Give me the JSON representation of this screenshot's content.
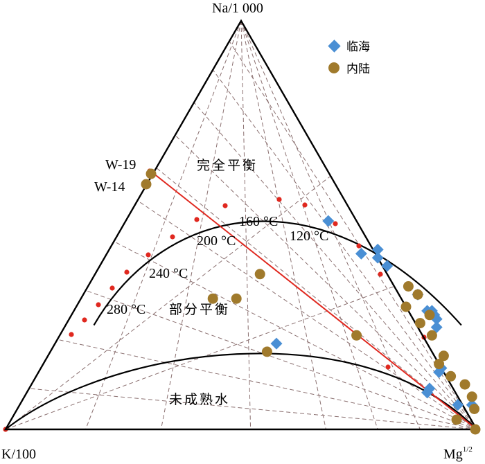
{
  "chart_data": {
    "type": "scatter",
    "subtype": "ternary",
    "title": "",
    "vertices": {
      "top": "Na/1 000",
      "left": "K/100",
      "right_base": "Mg",
      "right_sup": "1/2"
    },
    "legend": {
      "placement": "top-right",
      "entries": [
        {
          "name": "临海",
          "marker": "diamond",
          "color": "#4a8fd4"
        },
        {
          "name": "内陆",
          "marker": "circle",
          "color": "#a07a2c"
        }
      ]
    },
    "region_labels": {
      "full": "完全平衡",
      "partial": "部分平衡",
      "immature": "未成熟水"
    },
    "temperature_labels": [
      {
        "text": "160 °C"
      },
      {
        "text": "120 °C"
      },
      {
        "text": "200 °C"
      },
      {
        "text": "240 °C"
      },
      {
        "text": "280 °C"
      }
    ],
    "sample_labels": [
      "W-19",
      "W-14"
    ],
    "series": [
      {
        "name": "临海",
        "marker": "diamond",
        "points": [
          [
            0.43,
            0.51
          ],
          [
            0.58,
            0.42
          ],
          [
            0.57,
            0.44
          ],
          [
            0.61,
            0.4
          ],
          [
            0.54,
            0.43
          ],
          [
            0.71,
            0.33
          ],
          [
            0.78,
            0.27
          ],
          [
            0.75,
            0.29
          ],
          [
            0.47,
            0.21
          ],
          [
            0.76,
            0.29
          ],
          [
            0.77,
            0.28
          ],
          [
            0.79,
            0.25
          ],
          [
            0.85,
            0.15
          ],
          [
            0.85,
            0.14
          ],
          [
            0.85,
            0.1
          ],
          [
            0.85,
            0.09
          ],
          [
            0.93,
            0.06
          ],
          [
            0.96,
            0.06
          ]
        ]
      },
      {
        "name": "内陆",
        "marker": "circle",
        "points": [
          [
            0.28,
            0.32
          ],
          [
            0.33,
            0.32
          ],
          [
            0.35,
            0.38
          ],
          [
            0.46,
            0.19
          ],
          [
            0.7,
            0.3
          ],
          [
            0.71,
            0.33
          ],
          [
            0.68,
            0.35
          ],
          [
            0.76,
            0.28
          ],
          [
            0.75,
            0.26
          ],
          [
            0.79,
            0.23
          ],
          [
            0.88,
            0.13
          ],
          [
            0.84,
            0.18
          ],
          [
            0.84,
            0.16
          ],
          [
            0.92,
            0.11
          ],
          [
            0.95,
            0.08
          ],
          [
            0.97,
            0.05
          ],
          [
            0.63,
            0.23
          ],
          [
            0.0,
            0.0
          ]
        ]
      }
    ],
    "sample_points": [
      {
        "label": "W-19",
        "frac": [
          0.03,
          0.64
        ]
      },
      {
        "label": "W-14",
        "frac": [
          0.03,
          0.6
        ]
      }
    ],
    "annotations": [
      {
        "text": "完全平衡"
      },
      {
        "text": "部分平衡"
      },
      {
        "text": "未成熟水"
      }
    ],
    "grid": true,
    "colors": {
      "axis": "#000000",
      "curve": "#000000",
      "dashed": "#8a6f6f",
      "redline": "#e0281f",
      "reddot": "#e0281f",
      "marine": "#4a8fd4",
      "inland": "#a07a2c"
    }
  }
}
